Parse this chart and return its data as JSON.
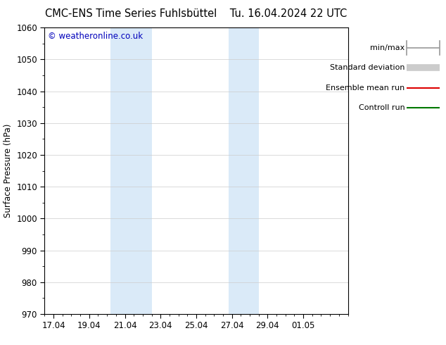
{
  "title": "CMC-ENS Time Series Fuhlsbüttel",
  "title_right": "Tu. 16.04.2024 22 UTC",
  "ylabel": "Surface Pressure (hPa)",
  "ylim": [
    970,
    1060
  ],
  "yticks": [
    970,
    980,
    990,
    1000,
    1010,
    1020,
    1030,
    1040,
    1050,
    1060
  ],
  "xtick_labels": [
    "17.04",
    "19.04",
    "21.04",
    "23.04",
    "25.04",
    "27.04",
    "29.04",
    "01.05"
  ],
  "xtick_positions": [
    0,
    2,
    4,
    6,
    8,
    10,
    12,
    14
  ],
  "xlim_start": -0.5,
  "xlim_end": 16.5,
  "shaded_regions": [
    {
      "xstart": 3.2,
      "xend": 5.5,
      "color": "#daeaf8"
    },
    {
      "xstart": 9.8,
      "xend": 11.5,
      "color": "#daeaf8"
    }
  ],
  "watermark": "© weatheronline.co.uk",
  "watermark_color": "#0000bb",
  "legend_entries": [
    {
      "label": "min/max",
      "color": "#999999",
      "lw": 1.2,
      "type": "errorbar"
    },
    {
      "label": "Standard deviation",
      "color": "#cccccc",
      "lw": 7,
      "type": "line"
    },
    {
      "label": "Ensemble mean run",
      "color": "#dd0000",
      "lw": 1.5,
      "type": "line"
    },
    {
      "label": "Controll run",
      "color": "#007700",
      "lw": 1.5,
      "type": "line"
    }
  ],
  "bg_color": "#ffffff",
  "grid_color": "#cccccc",
  "font_size": 8.5,
  "title_font_size": 10.5
}
